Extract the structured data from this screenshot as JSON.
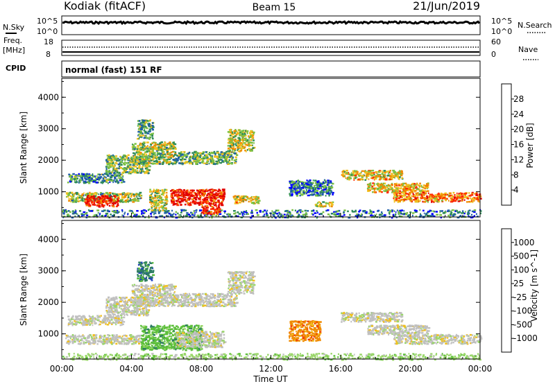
{
  "header": {
    "station": "Kodiak (fitACF)",
    "beam": "Beam 15",
    "date": "21/Jun/2019"
  },
  "housekeeping": {
    "nsky_label": "N.Sky",
    "nsky_ticks": [
      "10^5",
      "10^0"
    ],
    "nsearch_label": "N.Search",
    "nsearch_ticks": [
      "10^5",
      "10^0"
    ],
    "freq_label": "Freq.",
    "freq_unit": "[MHz]",
    "freq_ticks": [
      "18",
      "8"
    ],
    "nave_label": "Nave",
    "nave_ticks": [
      "60",
      "0"
    ],
    "cpid_label": "CPID",
    "cpid_value": "normal (fast) 151 RF"
  },
  "chart_data": [
    {
      "type": "heatmap",
      "name": "power",
      "ylabel": "Slant Range [km]",
      "yticks": [
        "1000",
        "2000",
        "3000",
        "4000"
      ],
      "ylim": [
        200,
        4600
      ],
      "xlim": [
        0,
        24
      ],
      "colorbar": {
        "label": "Power [dB]",
        "ticks": [
          "4",
          "8",
          "12",
          "16",
          "20",
          "24",
          "28"
        ],
        "range": [
          0,
          30
        ],
        "colors": [
          "#0000ff",
          "#1f5fa8",
          "#2e8b57",
          "#7bc043",
          "#f0c020",
          "#f08a00",
          "#ff3000",
          "#e00000"
        ]
      },
      "echo_regions": [
        {
          "x": [
            0,
            24
          ],
          "y": [
            200,
            450
          ],
          "level": 0.25
        },
        {
          "x": [
            0.2,
            4.5
          ],
          "y": [
            700,
            1000
          ],
          "level": 0.45
        },
        {
          "x": [
            1.3,
            3.2
          ],
          "y": [
            550,
            900
          ],
          "level": 0.9
        },
        {
          "x": [
            0.3,
            3.5
          ],
          "y": [
            1300,
            1600
          ],
          "level": 0.3
        },
        {
          "x": [
            2.5,
            5.0
          ],
          "y": [
            1600,
            2200
          ],
          "level": 0.4
        },
        {
          "x": [
            4.0,
            6.5
          ],
          "y": [
            1900,
            2600
          ],
          "level": 0.45
        },
        {
          "x": [
            4.3,
            5.2
          ],
          "y": [
            2700,
            3300
          ],
          "level": 0.35
        },
        {
          "x": [
            5.0,
            6.0
          ],
          "y": [
            400,
            1100
          ],
          "level": 0.5
        },
        {
          "x": [
            6.2,
            9.3
          ],
          "y": [
            600,
            1100
          ],
          "level": 0.9
        },
        {
          "x": [
            8.0,
            9.0
          ],
          "y": [
            300,
            600
          ],
          "level": 0.85
        },
        {
          "x": [
            6.5,
            10.0
          ],
          "y": [
            1900,
            2300
          ],
          "level": 0.4
        },
        {
          "x": [
            9.5,
            11.0
          ],
          "y": [
            2300,
            3000
          ],
          "level": 0.5
        },
        {
          "x": [
            9.8,
            11.3
          ],
          "y": [
            650,
            900
          ],
          "level": 0.55
        },
        {
          "x": [
            13.0,
            15.5
          ],
          "y": [
            900,
            1400
          ],
          "level": 0.25
        },
        {
          "x": [
            14.5,
            15.5
          ],
          "y": [
            550,
            700
          ],
          "level": 0.55
        },
        {
          "x": [
            16.0,
            19.5
          ],
          "y": [
            1400,
            1700
          ],
          "level": 0.55
        },
        {
          "x": [
            17.5,
            21.0
          ],
          "y": [
            1000,
            1300
          ],
          "level": 0.6
        },
        {
          "x": [
            19.0,
            24.0
          ],
          "y": [
            700,
            1000
          ],
          "level": 0.7
        }
      ]
    },
    {
      "type": "heatmap",
      "name": "velocity",
      "xlabel": "Time UT",
      "ylabel": "Slant Range [km]",
      "xticks": [
        "00:00",
        "04:00",
        "08:00",
        "12:00",
        "16:00",
        "20:00",
        "00:00"
      ],
      "yticks": [
        "1000",
        "2000",
        "3000",
        "4000"
      ],
      "ylim": [
        200,
        4600
      ],
      "xlim": [
        0,
        24
      ],
      "colorbar": {
        "label": "Velocity [m s^-1]",
        "ticks": [
          "1000",
          "500",
          "100",
          "25",
          "-25",
          "-100",
          "-500",
          "-1000"
        ],
        "colors": [
          "#1f3fbf",
          "#2d7d62",
          "#5cbf3a",
          "#9ad66a",
          "#c0c0c0",
          "#f0c020",
          "#f08a00",
          "#f04000",
          "#e00000"
        ]
      },
      "echo_regions": [
        {
          "x": [
            0,
            24
          ],
          "y": [
            200,
            400
          ],
          "class": 3
        },
        {
          "x": [
            0.2,
            4.5
          ],
          "y": [
            700,
            1000
          ],
          "class": 4
        },
        {
          "x": [
            0.3,
            3.5
          ],
          "y": [
            1300,
            1600
          ],
          "class": 4
        },
        {
          "x": [
            2.5,
            5.0
          ],
          "y": [
            1600,
            2200
          ],
          "class": 4
        },
        {
          "x": [
            4.0,
            6.5
          ],
          "y": [
            1900,
            2600
          ],
          "class": 4
        },
        {
          "x": [
            4.3,
            5.2
          ],
          "y": [
            2700,
            3300
          ],
          "class": 1
        },
        {
          "x": [
            4.5,
            8.0
          ],
          "y": [
            500,
            1300
          ],
          "class": 2
        },
        {
          "x": [
            6.5,
            9.3
          ],
          "y": [
            600,
            1100
          ],
          "class": 4
        },
        {
          "x": [
            6.5,
            10.0
          ],
          "y": [
            1900,
            2300
          ],
          "class": 4
        },
        {
          "x": [
            9.5,
            11.0
          ],
          "y": [
            2300,
            3000
          ],
          "class": 4
        },
        {
          "x": [
            13.0,
            14.8
          ],
          "y": [
            800,
            1450
          ],
          "class": 6
        },
        {
          "x": [
            16.0,
            19.5
          ],
          "y": [
            1400,
            1700
          ],
          "class": 4
        },
        {
          "x": [
            17.5,
            21.0
          ],
          "y": [
            1000,
            1300
          ],
          "class": 4
        },
        {
          "x": [
            19.0,
            24.0
          ],
          "y": [
            700,
            1000
          ],
          "class": 4
        }
      ]
    }
  ]
}
